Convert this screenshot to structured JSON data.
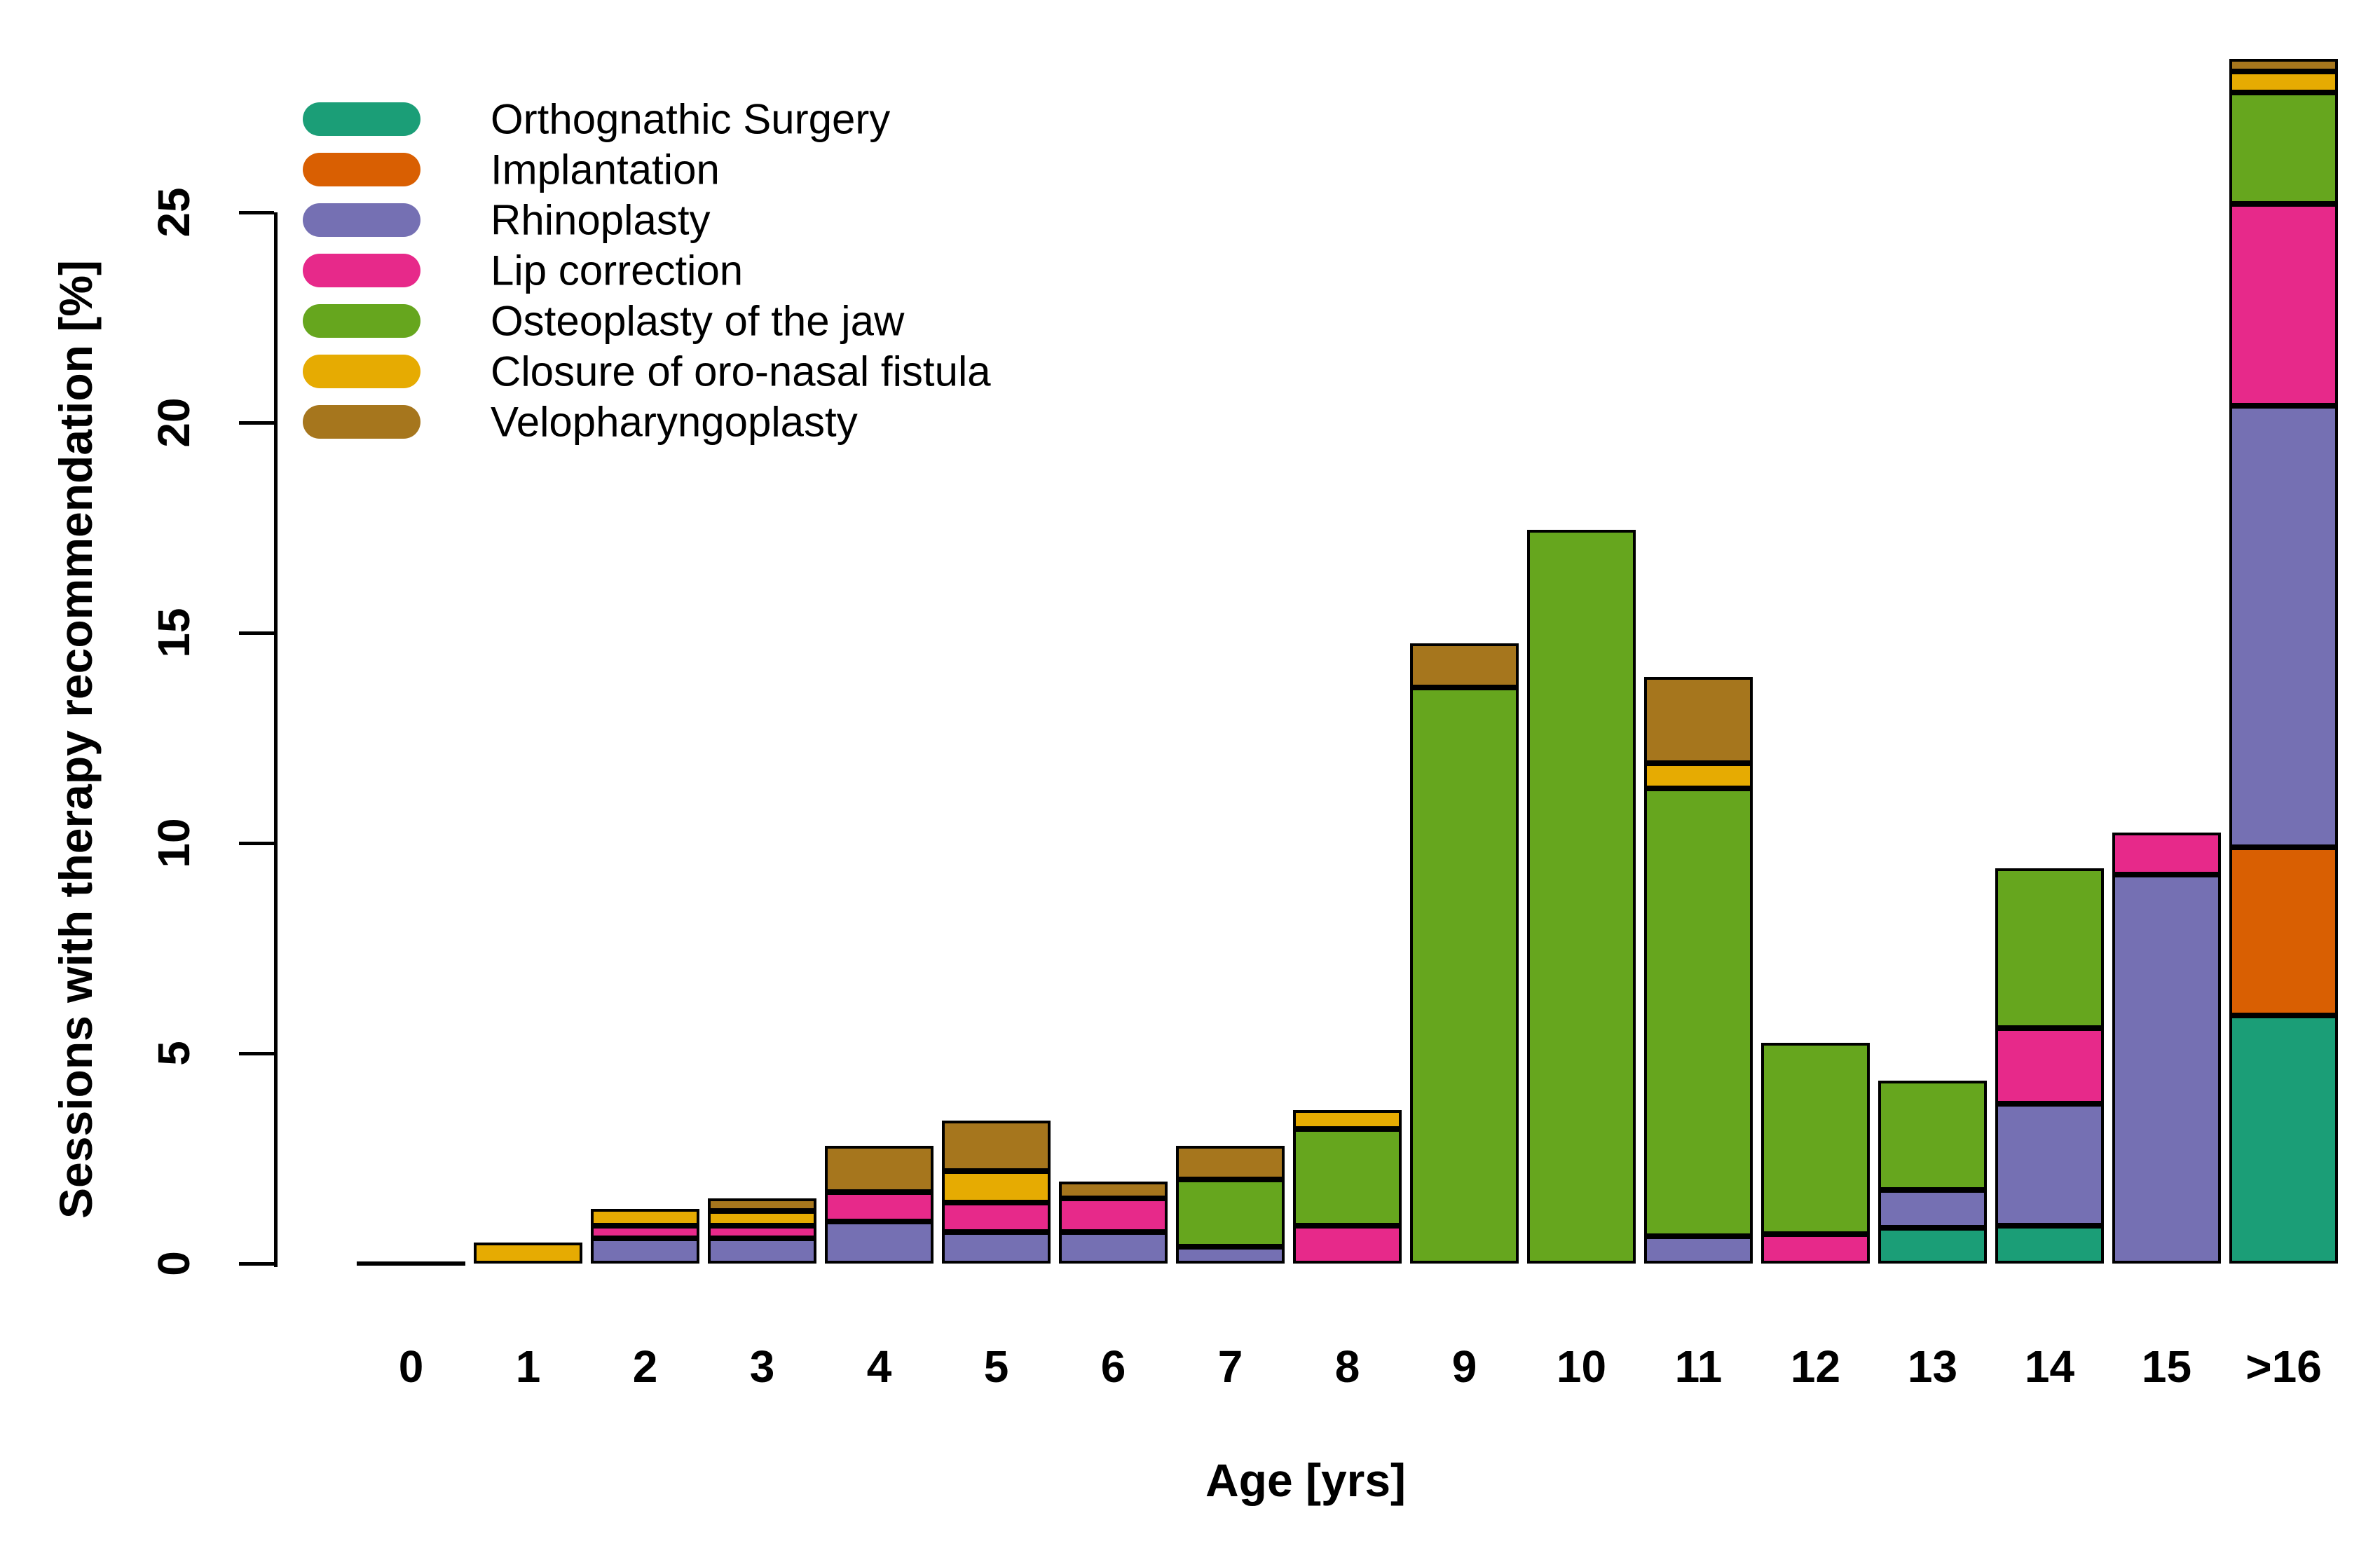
{
  "chart_data": {
    "type": "bar",
    "variant": "stacked-vertical",
    "title": "",
    "xlabel": "Age [yrs]",
    "ylabel": "Sessions with therapy recommendation [%]",
    "categories": [
      "0",
      "1",
      "2",
      "3",
      "4",
      "5",
      "6",
      "7",
      "8",
      "9",
      "10",
      "11",
      "12",
      "13",
      "14",
      "15",
      ">16"
    ],
    "yticks": [
      0,
      5,
      10,
      15,
      20,
      25
    ],
    "ylim": [
      0,
      28.7
    ],
    "grid": false,
    "legend_position": "top-left-inside",
    "stacking_order_note": "series listed bottom-to-top of stack; legend shows same order top-to-bottom",
    "series": [
      {
        "name": "Orthognathic Surgery",
        "color": "#1B9E77",
        "values": [
          0,
          0,
          0,
          0,
          0,
          0,
          0,
          0,
          0,
          0,
          0,
          0,
          0,
          0.85,
          0.9,
          0,
          5.9
        ]
      },
      {
        "name": "Implantation",
        "color": "#D95F02",
        "values": [
          0,
          0,
          0,
          0,
          0,
          0,
          0,
          0,
          0,
          0,
          0,
          0,
          0,
          0,
          0,
          0,
          4.0
        ]
      },
      {
        "name": "Rhinoplasty",
        "color": "#7570B3",
        "values": [
          0,
          0,
          0.6,
          0.6,
          1.0,
          0.75,
          0.75,
          0.4,
          0,
          0,
          0,
          0.65,
          0,
          0.9,
          2.9,
          9.25,
          10.5
        ]
      },
      {
        "name": "Lip correction",
        "color": "#E7298A",
        "values": [
          0,
          0,
          0.3,
          0.3,
          0.7,
          0.7,
          0.8,
          0,
          0.9,
          0,
          0,
          0,
          0.7,
          0,
          1.8,
          1.0,
          4.8
        ]
      },
      {
        "name": "Osteoplasty of the jaw",
        "color": "#66A61E",
        "values": [
          0,
          0,
          0,
          0,
          0,
          0,
          0,
          1.6,
          2.3,
          13.7,
          17.45,
          10.65,
          4.55,
          2.6,
          3.8,
          0,
          2.65
        ]
      },
      {
        "name": "Closure of oro-nasal fistula",
        "color": "#E6AB02",
        "values": [
          0,
          0.5,
          0.4,
          0.35,
          0,
          0.75,
          0,
          0,
          0.45,
          0,
          0,
          0.6,
          0,
          0,
          0,
          0,
          0.5
        ]
      },
      {
        "name": "Velopharyngoplasty",
        "color": "#A6761D",
        "values": [
          0,
          0,
          0,
          0.3,
          1.1,
          1.2,
          0.4,
          0.8,
          0,
          1.05,
          0,
          2.05,
          0,
          0,
          0,
          0,
          0.3
        ]
      }
    ],
    "totals": [
      0,
      0.5,
      1.3,
      1.55,
      2.8,
      3.4,
      1.95,
      2.8,
      3.65,
      14.75,
      17.45,
      13.95,
      5.25,
      4.35,
      9.4,
      10.25,
      28.65
    ]
  }
}
